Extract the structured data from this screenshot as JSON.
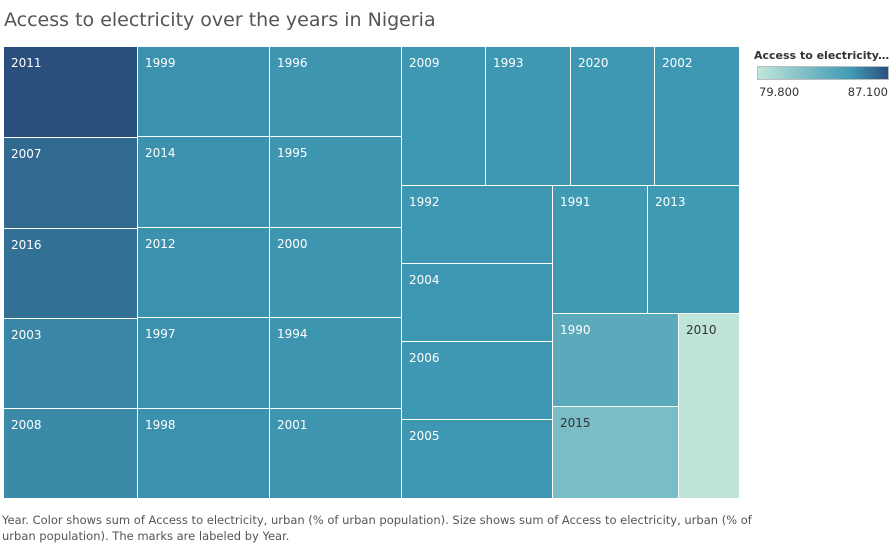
{
  "chart_data": {
    "type": "treemap",
    "title": "Access to electricity over the years in Nigeria",
    "legend": {
      "title": "Access to electricity, ur..",
      "min_label": "79.800",
      "max_label": "87.100",
      "min": 79.8,
      "max": 87.1,
      "color_low": "#bfe5da",
      "color_mid": "#3e9ab4",
      "color_high": "#2a4f7f",
      "placement": "top-right"
    },
    "caption": "Year.  Color shows sum of Access to electricity, urban (% of urban population).  Size shows sum of Access to electricity, urban (% of urban population).  The marks are labeled by Year.",
    "items": [
      {
        "label": "2011",
        "value": 87.1
      },
      {
        "label": "2007",
        "value": 86.4
      },
      {
        "label": "2016",
        "value": 86.2
      },
      {
        "label": "2003",
        "value": 85.6
      },
      {
        "label": "2008",
        "value": 85.5
      },
      {
        "label": "1999",
        "value": 85.3
      },
      {
        "label": "2014",
        "value": 85.3
      },
      {
        "label": "2012",
        "value": 85.3
      },
      {
        "label": "1997",
        "value": 85.3
      },
      {
        "label": "1998",
        "value": 85.3
      },
      {
        "label": "1996",
        "value": 85.2
      },
      {
        "label": "1995",
        "value": 85.2
      },
      {
        "label": "2000",
        "value": 85.2
      },
      {
        "label": "1994",
        "value": 85.2
      },
      {
        "label": "2001",
        "value": 85.2
      },
      {
        "label": "2009",
        "value": 85.1
      },
      {
        "label": "1993",
        "value": 85.1
      },
      {
        "label": "2020",
        "value": 85.1
      },
      {
        "label": "2002",
        "value": 85.1
      },
      {
        "label": "1992",
        "value": 85.1
      },
      {
        "label": "2004",
        "value": 85.1
      },
      {
        "label": "2006",
        "value": 85.1
      },
      {
        "label": "2005",
        "value": 85.1
      },
      {
        "label": "1991",
        "value": 85.0
      },
      {
        "label": "2013",
        "value": 85.0
      },
      {
        "label": "1990",
        "value": 83.9
      },
      {
        "label": "2015",
        "value": 82.6
      },
      {
        "label": "2010",
        "value": 79.8
      }
    ]
  }
}
